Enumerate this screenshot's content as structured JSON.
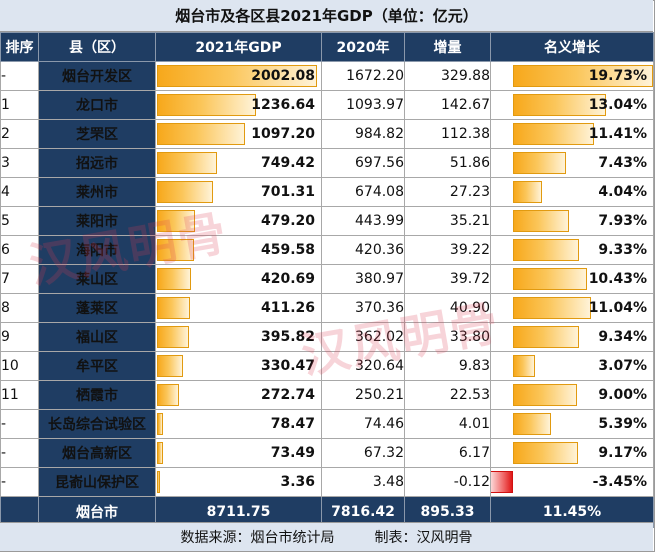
{
  "title": "烟台市及各区县2021年GDP（单位：亿元）",
  "headers": {
    "rank": "排序",
    "name": "县（区）",
    "gdp2021": "2021年GDP",
    "gdp2020": "2020年",
    "increase": "增量",
    "growth": "名义增长"
  },
  "rows": [
    {
      "rank": "-",
      "name": "烟台开发区",
      "gdp2021": "2002.08",
      "gdp2020": "1672.20",
      "increase": "329.88",
      "growth": "19.73%",
      "gdp_value": 2002.08,
      "growth_value": 19.73
    },
    {
      "rank": "1",
      "name": "龙口市",
      "gdp2021": "1236.64",
      "gdp2020": "1093.97",
      "increase": "142.67",
      "growth": "13.04%",
      "gdp_value": 1236.64,
      "growth_value": 13.04
    },
    {
      "rank": "2",
      "name": "芝罘区",
      "gdp2021": "1097.20",
      "gdp2020": "984.82",
      "increase": "112.38",
      "growth": "11.41%",
      "gdp_value": 1097.2,
      "growth_value": 11.41
    },
    {
      "rank": "3",
      "name": "招远市",
      "gdp2021": "749.42",
      "gdp2020": "697.56",
      "increase": "51.86",
      "growth": "7.43%",
      "gdp_value": 749.42,
      "growth_value": 7.43
    },
    {
      "rank": "4",
      "name": "莱州市",
      "gdp2021": "701.31",
      "gdp2020": "674.08",
      "increase": "27.23",
      "growth": "4.04%",
      "gdp_value": 701.31,
      "growth_value": 4.04
    },
    {
      "rank": "5",
      "name": "莱阳市",
      "gdp2021": "479.20",
      "gdp2020": "443.99",
      "increase": "35.21",
      "growth": "7.93%",
      "gdp_value": 479.2,
      "growth_value": 7.93
    },
    {
      "rank": "6",
      "name": "海阳市",
      "gdp2021": "459.58",
      "gdp2020": "420.36",
      "increase": "39.22",
      "growth": "9.33%",
      "gdp_value": 459.58,
      "growth_value": 9.33
    },
    {
      "rank": "7",
      "name": "莱山区",
      "gdp2021": "420.69",
      "gdp2020": "380.97",
      "increase": "39.72",
      "growth": "10.43%",
      "gdp_value": 420.69,
      "growth_value": 10.43
    },
    {
      "rank": "8",
      "name": "蓬莱区",
      "gdp2021": "411.26",
      "gdp2020": "370.36",
      "increase": "40.90",
      "growth": "11.04%",
      "gdp_value": 411.26,
      "growth_value": 11.04
    },
    {
      "rank": "9",
      "name": "福山区",
      "gdp2021": "395.82",
      "gdp2020": "362.02",
      "increase": "33.80",
      "growth": "9.34%",
      "gdp_value": 395.82,
      "growth_value": 9.34
    },
    {
      "rank": "10",
      "name": "牟平区",
      "gdp2021": "330.47",
      "gdp2020": "320.64",
      "increase": "9.83",
      "growth": "3.07%",
      "gdp_value": 330.47,
      "growth_value": 3.07
    },
    {
      "rank": "11",
      "name": "栖霞市",
      "gdp2021": "272.74",
      "gdp2020": "250.21",
      "increase": "22.53",
      "growth": "9.00%",
      "gdp_value": 272.74,
      "growth_value": 9.0
    },
    {
      "rank": "-",
      "name": "长岛综合试验区",
      "gdp2021": "78.47",
      "gdp2020": "74.46",
      "increase": "4.01",
      "growth": "5.39%",
      "gdp_value": 78.47,
      "growth_value": 5.39
    },
    {
      "rank": "-",
      "name": "烟台高新区",
      "gdp2021": "73.49",
      "gdp2020": "67.32",
      "increase": "6.17",
      "growth": "9.17%",
      "gdp_value": 73.49,
      "growth_value": 9.17
    },
    {
      "rank": "-",
      "name": "昆嵛山保护区",
      "gdp2021": "3.36",
      "gdp2020": "3.48",
      "increase": "-0.12",
      "growth": "-3.45%",
      "gdp_value": 3.36,
      "growth_value": -3.45
    }
  ],
  "total": {
    "name": "烟台市",
    "gdp2021": "8711.75",
    "gdp2020": "7816.42",
    "increase": "895.33",
    "growth": "11.45%"
  },
  "footer": {
    "source": "数据来源：烟台市统计局",
    "maker": "制表：汉风明骨"
  },
  "watermark": "汉风明骨",
  "colors": {
    "header_bg": "#1f3d63",
    "title_bg": "#dde5f0",
    "bar_positive": "#f7a81b",
    "bar_negative": "#e01818"
  }
}
